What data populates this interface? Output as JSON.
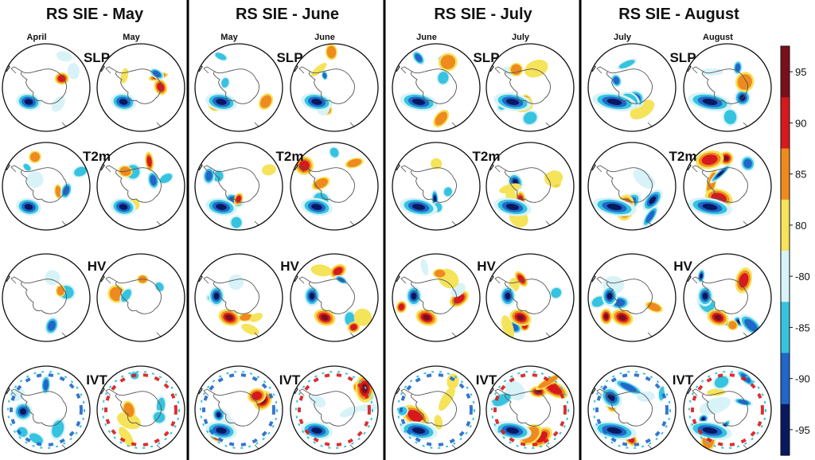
{
  "chart_data": {
    "type": "heatmap",
    "panels": [
      {
        "title": "RS SIE - May",
        "months": [
          "April",
          "May"
        ]
      },
      {
        "title": "RS SIE - June",
        "months": [
          "May",
          "June"
        ]
      },
      {
        "title": "RS SIE - July",
        "months": [
          "June",
          "July"
        ]
      },
      {
        "title": "RS SIE - August",
        "months": [
          "July",
          "August"
        ]
      }
    ],
    "variables": [
      "SLP",
      "T2m",
      "HV",
      "IVT"
    ],
    "colorbar": {
      "ticks": [
        "95",
        "90",
        "85",
        "80",
        "-80",
        "-85",
        "-90",
        "-95"
      ],
      "colors": [
        "#7a0f1e",
        "#d7191c",
        "#ef8a1f",
        "#f5e35a",
        "#d8f3f7",
        "#36c3e0",
        "#2166c9",
        "#08195e"
      ]
    }
  }
}
